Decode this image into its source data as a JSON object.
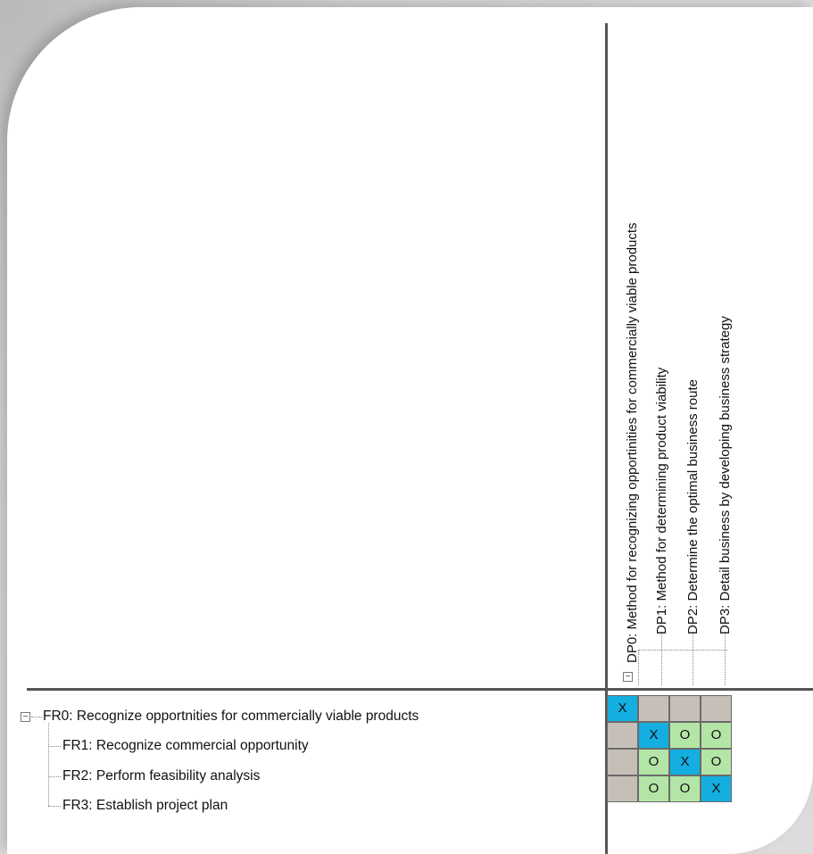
{
  "colors": {
    "x_cell": "#14aee0",
    "o_cell": "#b3e6a6",
    "empty_cell": "#c6bfb7"
  },
  "dps": [
    {
      "id": "DP0",
      "label": "DP0: Method for recognizing opportinities for commercially viable products"
    },
    {
      "id": "DP1",
      "label": "DP1: Method for determining product viability"
    },
    {
      "id": "DP2",
      "label": "DP2: Determine the optimal business route"
    },
    {
      "id": "DP3",
      "label": "DP3: Detail business by  developing business strategy"
    }
  ],
  "frs": [
    {
      "id": "FR0",
      "label": "FR0: Recognize opportnities for commercially viable products"
    },
    {
      "id": "FR1",
      "label": "FR1: Recognize commercial opportunity"
    },
    {
      "id": "FR2",
      "label": "FR2: Perform feasibility analysis"
    },
    {
      "id": "FR3",
      "label": "FR3: Establish project plan"
    }
  ],
  "toggle_symbol": "⊟",
  "matrix": [
    [
      "X",
      "",
      "",
      ""
    ],
    [
      "",
      "X",
      "O",
      "O"
    ],
    [
      "",
      "O",
      "X",
      "O"
    ],
    [
      "",
      "O",
      "O",
      "X"
    ]
  ]
}
